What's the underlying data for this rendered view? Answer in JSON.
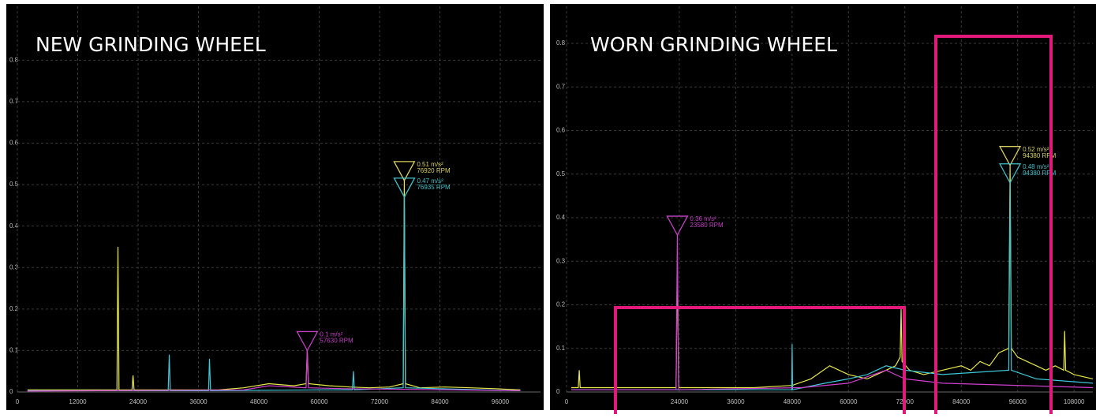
{
  "chart_data": [
    {
      "type": "line",
      "title": "NEW GRINDING WHEEL",
      "xlim": [
        0,
        104000
      ],
      "ylim": [
        0,
        0.93
      ],
      "xticks": [
        0,
        12000,
        24000,
        36000,
        48000,
        60000,
        72000,
        84000,
        96000
      ],
      "yticks": [
        0,
        0.1,
        0.2,
        0.3,
        0.4,
        0.5,
        0.6,
        0.7,
        0.8
      ],
      "grid": true,
      "series": [
        {
          "color": "#e8e84a",
          "x": [
            2000,
            19800,
            20000,
            20200,
            22800,
            23000,
            23200,
            40000,
            45000,
            50000,
            55000,
            57400,
            57630,
            57860,
            62000,
            66000,
            70000,
            74000,
            76700,
            76920,
            77140,
            80000,
            85000,
            90000,
            95000,
            100000
          ],
          "values": [
            0.005,
            0.005,
            0.35,
            0.005,
            0.005,
            0.04,
            0.005,
            0.005,
            0.01,
            0.02,
            0.015,
            0.02,
            0.1,
            0.02,
            0.015,
            0.012,
            0.01,
            0.012,
            0.02,
            0.51,
            0.02,
            0.01,
            0.012,
            0.01,
            0.008,
            0.005
          ]
        },
        {
          "color": "#3cc8d8",
          "x": [
            2000,
            30000,
            30200,
            30400,
            38000,
            38200,
            38400,
            60000,
            66600,
            66800,
            67000,
            76700,
            76935,
            77150,
            100000
          ],
          "values": [
            0.003,
            0.003,
            0.09,
            0.003,
            0.003,
            0.08,
            0.003,
            0.005,
            0.005,
            0.05,
            0.005,
            0.01,
            0.47,
            0.01,
            0.003
          ]
        },
        {
          "color": "#d040d0",
          "x": [
            2000,
            45000,
            50000,
            57400,
            57630,
            57860,
            65000,
            100000
          ],
          "values": [
            0.002,
            0.005,
            0.015,
            0.01,
            0.1,
            0.01,
            0.008,
            0.003
          ]
        }
      ],
      "markers": [
        {
          "x": 76920,
          "y": 0.51,
          "value_label": "0.51 m/s²",
          "x_label": "76920 RPM",
          "color": "#d8d060"
        },
        {
          "x": 76935,
          "y": 0.47,
          "value_label": "0.47 m/s²",
          "x_label": "76935 RPM",
          "color": "#40c0c8"
        },
        {
          "x": 57630,
          "y": 0.1,
          "value_label": "0.1 m/s²",
          "x_label": "57630 RPM",
          "color": "#c040c0"
        }
      ]
    },
    {
      "type": "line",
      "title": "WORN GRINDING WHEEL",
      "xlim": [
        0,
        112000
      ],
      "ylim": [
        0,
        0.885
      ],
      "xticks": [
        0,
        24000,
        36000,
        48000,
        60000,
        72000,
        84000,
        96000,
        108000
      ],
      "yticks": [
        0,
        0.1,
        0.2,
        0.3,
        0.4,
        0.5,
        0.6,
        0.7,
        0.8
      ],
      "grid": true,
      "series": [
        {
          "color": "#e8e84a",
          "x": [
            1000,
            2500,
            2700,
            2900,
            23300,
            23580,
            23860,
            30000,
            40000,
            48000,
            52000,
            56000,
            60000,
            64000,
            68000,
            70000,
            71000,
            71200,
            71400,
            73000,
            76000,
            80000,
            84000,
            86000,
            88000,
            90000,
            92000,
            94100,
            94380,
            94660,
            96000,
            98000,
            100000,
            102000,
            104000,
            105800,
            106000,
            106200,
            108000,
            112000
          ],
          "values": [
            0.01,
            0.01,
            0.05,
            0.01,
            0.01,
            0.3,
            0.01,
            0.01,
            0.01,
            0.015,
            0.03,
            0.06,
            0.04,
            0.03,
            0.05,
            0.06,
            0.08,
            0.19,
            0.07,
            0.05,
            0.04,
            0.05,
            0.06,
            0.05,
            0.07,
            0.06,
            0.09,
            0.1,
            0.52,
            0.1,
            0.08,
            0.07,
            0.06,
            0.05,
            0.06,
            0.05,
            0.14,
            0.05,
            0.04,
            0.03
          ]
        },
        {
          "color": "#3cc8d8",
          "x": [
            1000,
            45000,
            47900,
            48000,
            48100,
            55000,
            60000,
            64000,
            68000,
            72000,
            80000,
            94100,
            94380,
            94660,
            100000,
            112000
          ],
          "values": [
            0.005,
            0.005,
            0.005,
            0.11,
            0.005,
            0.02,
            0.03,
            0.04,
            0.06,
            0.05,
            0.04,
            0.05,
            0.48,
            0.05,
            0.03,
            0.02
          ]
        },
        {
          "color": "#d040d0",
          "x": [
            1000,
            23300,
            23580,
            23860,
            50000,
            60000,
            68000,
            72000,
            80000,
            112000
          ],
          "values": [
            0.005,
            0.005,
            0.36,
            0.005,
            0.01,
            0.02,
            0.05,
            0.03,
            0.02,
            0.01
          ]
        }
      ],
      "markers": [
        {
          "x": 94380,
          "y": 0.52,
          "value_label": "0.52 m/s²",
          "x_label": "94380 RPM",
          "color": "#d8d060"
        },
        {
          "x": 94380,
          "y": 0.48,
          "value_label": "0.48 m/s²",
          "x_label": "94380 RPM",
          "color": "#40c0c8"
        },
        {
          "x": 23580,
          "y": 0.36,
          "value_label": "0.36 m/s²",
          "x_label": "23580 RPM",
          "color": "#c040c0"
        }
      ]
    }
  ]
}
